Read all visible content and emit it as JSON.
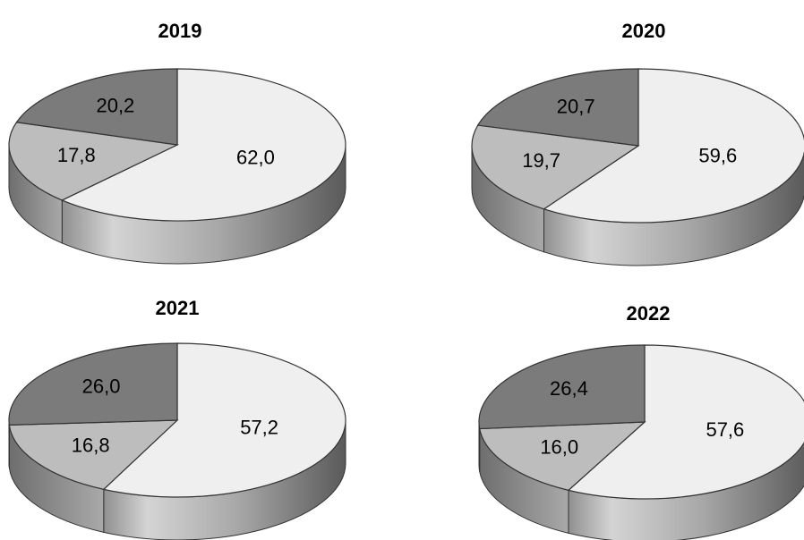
{
  "chart_data": [
    {
      "type": "pie",
      "title": "2019",
      "slices": [
        {
          "value": 62.0,
          "label": "62,0",
          "color": "#efefef"
        },
        {
          "value": 17.8,
          "label": "17,8",
          "color": "#bdbdbd"
        },
        {
          "value": 20.2,
          "label": "20,2",
          "color": "#7b7b7b"
        }
      ]
    },
    {
      "type": "pie",
      "title": "2020",
      "slices": [
        {
          "value": 59.6,
          "label": "59,6",
          "color": "#efefef"
        },
        {
          "value": 19.7,
          "label": "19,7",
          "color": "#bdbdbd"
        },
        {
          "value": 20.7,
          "label": "20,7",
          "color": "#7b7b7b"
        }
      ]
    },
    {
      "type": "pie",
      "title": "2021",
      "slices": [
        {
          "value": 57.2,
          "label": "57,2",
          "color": "#efefef"
        },
        {
          "value": 16.8,
          "label": "16,8",
          "color": "#bdbdbd"
        },
        {
          "value": 26.0,
          "label": "26,0",
          "color": "#7b7b7b"
        }
      ]
    },
    {
      "type": "pie",
      "title": "2022",
      "slices": [
        {
          "value": 57.6,
          "label": "57,6",
          "color": "#efefef"
        },
        {
          "value": 16.0,
          "label": "16,0",
          "color": "#bdbdbd"
        },
        {
          "value": 26.4,
          "label": "26,4",
          "color": "#7b7b7b"
        }
      ]
    }
  ]
}
